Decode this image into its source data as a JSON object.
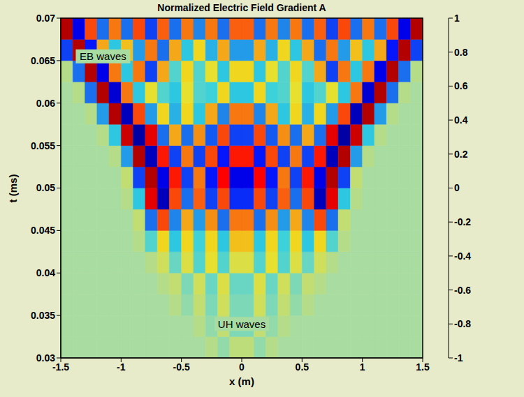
{
  "chart_data": {
    "type": "heatmap",
    "title": "Normalized Electric Field Gradient A",
    "x_label": "x (m)",
    "y_label": "t (ms)",
    "xlim": [
      -1.5,
      1.5
    ],
    "xticks": [
      -1.5,
      -1,
      -0.5,
      0,
      0.5,
      1,
      1.5
    ],
    "ylim": [
      0.03,
      0.07
    ],
    "yticks": [
      0.03,
      0.035,
      0.04,
      0.045,
      0.05,
      0.055,
      0.06,
      0.065,
      0.07
    ],
    "x_edges": [
      -1.5,
      -1.4,
      -1.3,
      -1.2,
      -1.1,
      -1.0,
      -0.9,
      -0.8,
      -0.7,
      -0.6,
      -0.5,
      -0.4,
      -0.3,
      -0.2,
      -0.1,
      0,
      0.1,
      0.2,
      0.3,
      0.4,
      0.5,
      0.6,
      0.7,
      0.8,
      0.9,
      1.0,
      1.1,
      1.2,
      1.3,
      1.4,
      1.5
    ],
    "y_edges": [
      0.03,
      0.0325,
      0.035,
      0.0375,
      0.04,
      0.0425,
      0.045,
      0.0475,
      0.05,
      0.0525,
      0.055,
      0.0575,
      0.06,
      0.0625,
      0.065,
      0.0675,
      0.07
    ],
    "values": [
      [
        0,
        0,
        0,
        0,
        0,
        0,
        0,
        0,
        0,
        0,
        0,
        0,
        0.05,
        -0.05,
        0.08,
        0.08,
        -0.05,
        0.05,
        0,
        0,
        0,
        0,
        0,
        0,
        0,
        0,
        0,
        0,
        0,
        0
      ],
      [
        0,
        0,
        0,
        0,
        0,
        0,
        0,
        0,
        0,
        0,
        0,
        0.05,
        -0.05,
        0.1,
        -0.1,
        -0.1,
        0.1,
        -0.05,
        0.05,
        0,
        0,
        0,
        0,
        0,
        0,
        0,
        0,
        0,
        0,
        0
      ],
      [
        0,
        0,
        0,
        0,
        0,
        0,
        0,
        0,
        0,
        0.05,
        -0.05,
        0.1,
        -0.1,
        0.15,
        -0.1,
        -0.1,
        0.15,
        -0.1,
        0.1,
        -0.05,
        0.05,
        0,
        0,
        0,
        0,
        0,
        0,
        0,
        0,
        0
      ],
      [
        0,
        0,
        0,
        0,
        0,
        0,
        0,
        0,
        0.05,
        0.1,
        -0.1,
        0.15,
        -0.15,
        0.2,
        -0.15,
        -0.15,
        0.2,
        -0.15,
        0.15,
        -0.1,
        0.1,
        0.05,
        0,
        0,
        0,
        0,
        0,
        0,
        0,
        0
      ],
      [
        0,
        0,
        0,
        0,
        0,
        0,
        0,
        0.05,
        0.15,
        -0.15,
        0.2,
        -0.2,
        0.25,
        -0.2,
        0.2,
        0.2,
        -0.2,
        0.25,
        -0.2,
        0.2,
        -0.15,
        0.15,
        0.05,
        0,
        0,
        0,
        0,
        0,
        0,
        0
      ],
      [
        0,
        0,
        0,
        0,
        0,
        0,
        0.05,
        -0.2,
        0.3,
        -0.3,
        0.3,
        -0.25,
        0.3,
        -0.3,
        0.35,
        0.35,
        -0.3,
        0.3,
        -0.25,
        0.3,
        -0.3,
        0.3,
        -0.2,
        0.05,
        0,
        0,
        0,
        0,
        0,
        0
      ],
      [
        0,
        0,
        0,
        0,
        0,
        0,
        0.1,
        -0.5,
        0.6,
        -0.45,
        0.4,
        -0.4,
        0.45,
        -0.5,
        0.5,
        0.5,
        -0.5,
        0.45,
        -0.4,
        0.4,
        -0.45,
        0.6,
        -0.5,
        0.1,
        0,
        0,
        0,
        0,
        0,
        0
      ],
      [
        0,
        0,
        0,
        0,
        0,
        0.05,
        -0.3,
        0.8,
        -0.9,
        0.6,
        -0.5,
        0.55,
        -0.6,
        0.6,
        -0.65,
        -0.65,
        0.6,
        -0.6,
        0.55,
        -0.5,
        0.6,
        -0.9,
        0.8,
        -0.3,
        0.05,
        0,
        0,
        0,
        0,
        0
      ],
      [
        0,
        0,
        0,
        0,
        0,
        0.1,
        -0.6,
        0.9,
        -0.8,
        0.7,
        -0.6,
        0.5,
        -0.7,
        0.75,
        -0.8,
        -0.8,
        0.75,
        -0.7,
        0.5,
        -0.6,
        0.7,
        -0.8,
        0.9,
        -0.6,
        0.1,
        0,
        0,
        0,
        0,
        0
      ],
      [
        0,
        0,
        0,
        0,
        0.05,
        -0.4,
        0.9,
        -0.9,
        0.7,
        -0.6,
        0.5,
        -0.6,
        0.6,
        -0.7,
        0.7,
        0.7,
        -0.7,
        0.6,
        -0.6,
        0.5,
        -0.6,
        0.7,
        -0.9,
        0.9,
        -0.4,
        0.05,
        0,
        0,
        0,
        0
      ],
      [
        0,
        0,
        0,
        0.05,
        -0.3,
        0.85,
        -0.95,
        0.8,
        -0.5,
        0.4,
        -0.5,
        0.45,
        -0.55,
        0.6,
        -0.6,
        -0.6,
        0.6,
        -0.55,
        0.45,
        -0.5,
        0.4,
        -0.5,
        0.8,
        -0.95,
        0.85,
        -0.3,
        0.05,
        0,
        0,
        0
      ],
      [
        0,
        0,
        0.05,
        -0.4,
        0.9,
        -0.9,
        0.6,
        -0.4,
        0.3,
        -0.35,
        0.3,
        -0.3,
        0.4,
        -0.45,
        0.5,
        0.5,
        -0.45,
        0.4,
        -0.3,
        0.3,
        -0.35,
        0.3,
        -0.4,
        0.6,
        -0.9,
        0.9,
        -0.4,
        0.05,
        0,
        0
      ],
      [
        0,
        0.05,
        -0.5,
        0.9,
        -0.85,
        0.5,
        -0.3,
        0.25,
        -0.2,
        -0.3,
        0.25,
        -0.2,
        -0.25,
        0.3,
        -0.3,
        -0.3,
        0.3,
        -0.25,
        -0.2,
        0.25,
        -0.3,
        -0.2,
        0.25,
        -0.3,
        0.5,
        -0.85,
        0.9,
        -0.5,
        0.05,
        0
      ],
      [
        0.05,
        -0.5,
        0.9,
        -0.8,
        0.5,
        -0.3,
        0.5,
        -0.6,
        0.4,
        -0.2,
        0.3,
        -0.2,
        0.25,
        -0.3,
        0.3,
        0.3,
        -0.3,
        0.25,
        -0.2,
        0.3,
        -0.2,
        0.4,
        -0.6,
        0.5,
        -0.3,
        0.5,
        -0.8,
        0.9,
        -0.5,
        0.05
      ],
      [
        -0.6,
        0.9,
        -0.7,
        0.4,
        -0.3,
        0.35,
        -0.4,
        0.5,
        -0.5,
        0.4,
        -0.3,
        0.3,
        -0.35,
        0.4,
        -0.4,
        -0.4,
        0.4,
        -0.35,
        0.3,
        -0.3,
        0.4,
        -0.5,
        0.5,
        -0.4,
        0.35,
        -0.3,
        0.4,
        -0.7,
        0.9,
        -0.6
      ],
      [
        0.9,
        -0.8,
        0.6,
        -0.5,
        0.5,
        -0.5,
        0.6,
        -0.6,
        0.55,
        -0.5,
        0.5,
        -0.45,
        0.5,
        -0.5,
        0.55,
        0.55,
        -0.5,
        0.5,
        -0.45,
        0.5,
        -0.5,
        0.55,
        -0.6,
        0.6,
        -0.5,
        0.5,
        -0.5,
        0.6,
        -0.8,
        0.9
      ]
    ],
    "colorbar": {
      "range": [
        -1,
        1
      ],
      "ticks": [
        -1,
        -0.8,
        -0.6,
        -0.4,
        -0.2,
        0,
        0.2,
        0.4,
        0.6,
        0.8,
        1
      ]
    },
    "annotations": [
      {
        "text": "EB waves",
        "x": -1.15,
        "y": 0.0655
      },
      {
        "text": "UH waves",
        "x": 0,
        "y": 0.034
      }
    ]
  }
}
